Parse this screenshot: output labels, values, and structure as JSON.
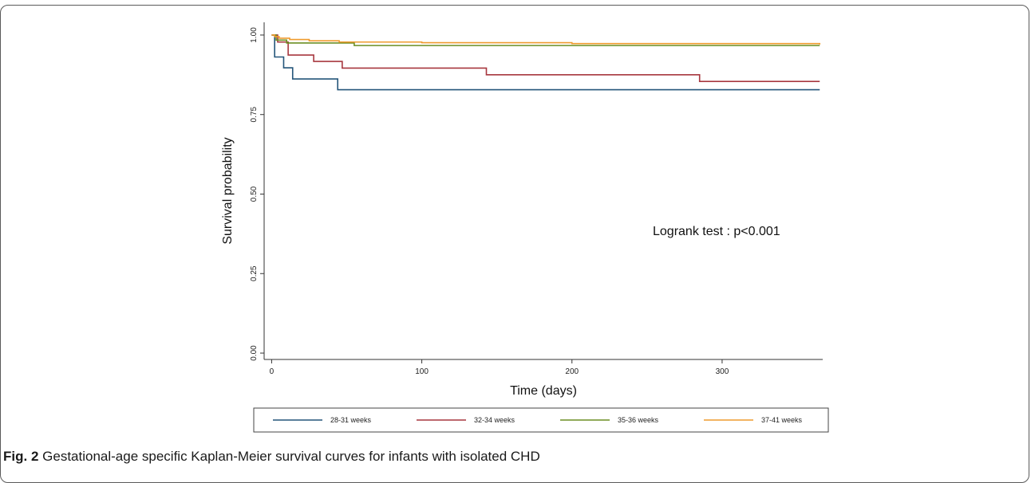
{
  "caption": {
    "label": "Fig. 2",
    "text": "Gestational-age specific Kaplan-Meier survival curves for infants with isolated CHD"
  },
  "chart_data": {
    "type": "line",
    "step": true,
    "xlabel": "Time (days)",
    "ylabel": "Survival probability",
    "xlim": [
      -5,
      367
    ],
    "ylim": [
      -0.02,
      1.04
    ],
    "xticks": [
      0,
      100,
      200,
      300
    ],
    "xtick_labels": [
      "0",
      "100",
      "200",
      "300"
    ],
    "yticks": [
      0,
      0.25,
      0.5,
      0.75,
      1
    ],
    "ytick_labels": [
      "0.00",
      "0.25",
      "0.50",
      "0.75",
      "1.00"
    ],
    "grid": false,
    "legend_position": "bottom",
    "annotation": "Logrank test : p<0.001",
    "series": [
      {
        "name": "28-31 weeks",
        "color": "#24557a",
        "x": [
          0,
          2,
          8,
          14,
          44,
          365
        ],
        "y": [
          1.0,
          0.931,
          0.897,
          0.862,
          0.828,
          0.828
        ]
      },
      {
        "name": "32-34 weeks",
        "color": "#a7373f",
        "x": [
          0,
          4,
          11,
          28,
          47,
          143,
          285,
          365
        ],
        "y": [
          1.0,
          0.978,
          0.937,
          0.917,
          0.896,
          0.875,
          0.854,
          0.854
        ]
      },
      {
        "name": "35-36 weeks",
        "color": "#6b8e23",
        "x": [
          0,
          3,
          10,
          55,
          365
        ],
        "y": [
          1.0,
          0.984,
          0.975,
          0.967,
          0.967
        ]
      },
      {
        "name": "37-41 weeks",
        "color": "#ef9b2e",
        "x": [
          0,
          2,
          5,
          12,
          25,
          45,
          100,
          200,
          365
        ],
        "y": [
          1.0,
          0.995,
          0.99,
          0.986,
          0.982,
          0.978,
          0.976,
          0.973,
          0.97
        ]
      }
    ]
  }
}
